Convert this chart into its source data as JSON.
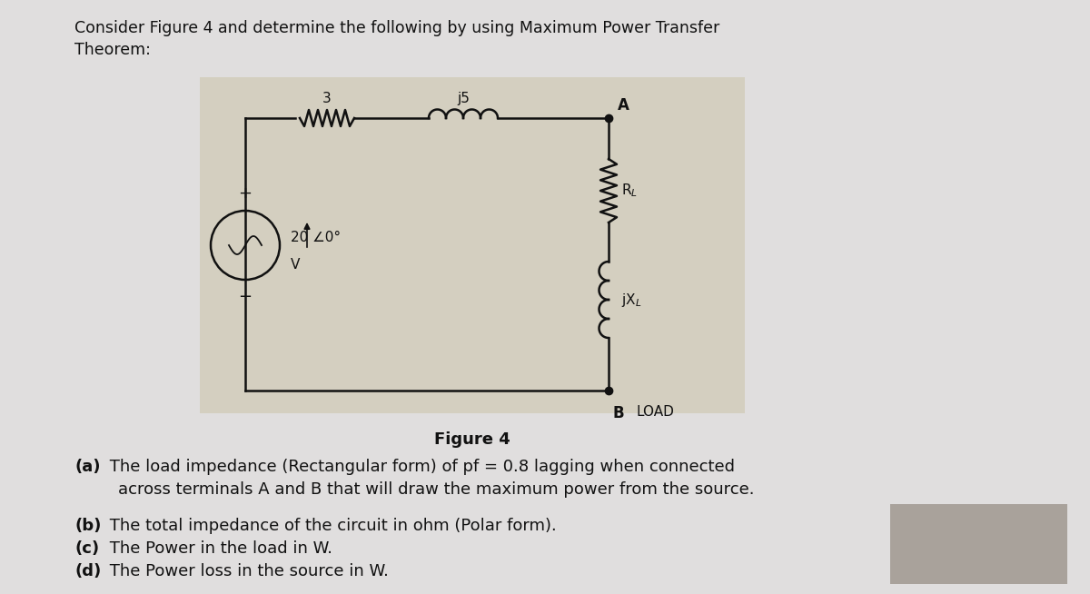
{
  "page_bg": "#e0dede",
  "circuit_bg": "#d4cfc0",
  "text_color": "#111111",
  "col": "#111111",
  "figure_label": "Figure 4",
  "header_line1": "Consider Figure 4 and determine the following by using Maximum Power Transfer",
  "header_line2": "Theorem:",
  "part_a_bold": "(a)",
  "part_a_rest1": " The load impedance (Rectangular form) of pf = 0.8 lagging when connected",
  "part_a_rest2": "    across terminals A and B that will draw the maximum power from the source.",
  "part_b_bold": "(b)",
  "part_b_rest": " The total impedance of the circuit in ohm (Polar form).",
  "part_c_bold": "(c)",
  "part_c_rest": " The Power in the load in W.",
  "part_d_bold": "(d)",
  "part_d_rest": " The Power loss in the source in W.",
  "censor_color": "#a09890"
}
